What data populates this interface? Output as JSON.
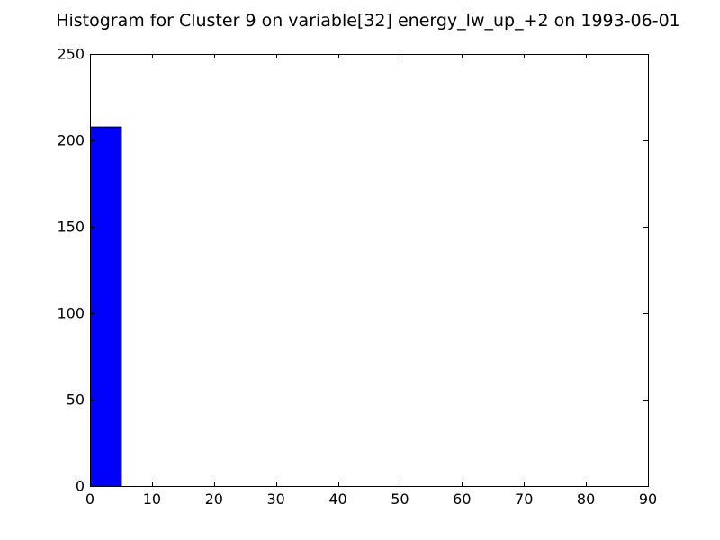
{
  "chart_data": {
    "type": "bar",
    "title": "Histogram for Cluster 9 on variable[32] energy_lw_up_+2 on 1993-06-01",
    "xlabel": "",
    "ylabel": "",
    "xlim": [
      0,
      90
    ],
    "ylim": [
      0,
      250
    ],
    "xticks": [
      0,
      10,
      20,
      30,
      40,
      50,
      60,
      70,
      80,
      90
    ],
    "yticks": [
      0,
      50,
      100,
      150,
      200,
      250
    ],
    "bins": [
      {
        "x0": 0,
        "x1": 5,
        "count": 208
      }
    ],
    "bar_color": "#0000ff",
    "grid": false,
    "legend": "none"
  }
}
